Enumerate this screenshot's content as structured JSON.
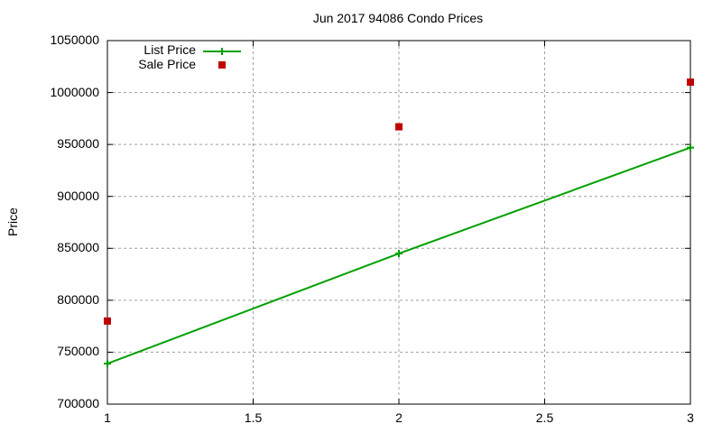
{
  "chart_data": {
    "type": "line",
    "title": "Jun 2017 94086 Condo Prices",
    "xlabel": "",
    "ylabel": "Price",
    "x": [
      1,
      2,
      3
    ],
    "series": [
      {
        "name": "List Price",
        "style": "linespoints",
        "color": "#00a000",
        "marker": "plus",
        "values": [
          739000,
          845000,
          947000
        ]
      },
      {
        "name": "Sale Price",
        "style": "points",
        "color": "#c00000",
        "marker": "square",
        "values": [
          780000,
          967000,
          1010000
        ]
      }
    ],
    "xlim": [
      1,
      3
    ],
    "ylim": [
      700000,
      1050000
    ],
    "xticks": [
      "1",
      "1.5",
      "2",
      "2.5",
      "3"
    ],
    "yticks": [
      "700000",
      "750000",
      "800000",
      "850000",
      "900000",
      "950000",
      "1000000",
      "1050000"
    ],
    "grid": true,
    "legend_position": "top-left"
  },
  "legend": {
    "list_label": "List Price",
    "sale_label": "Sale Price"
  }
}
